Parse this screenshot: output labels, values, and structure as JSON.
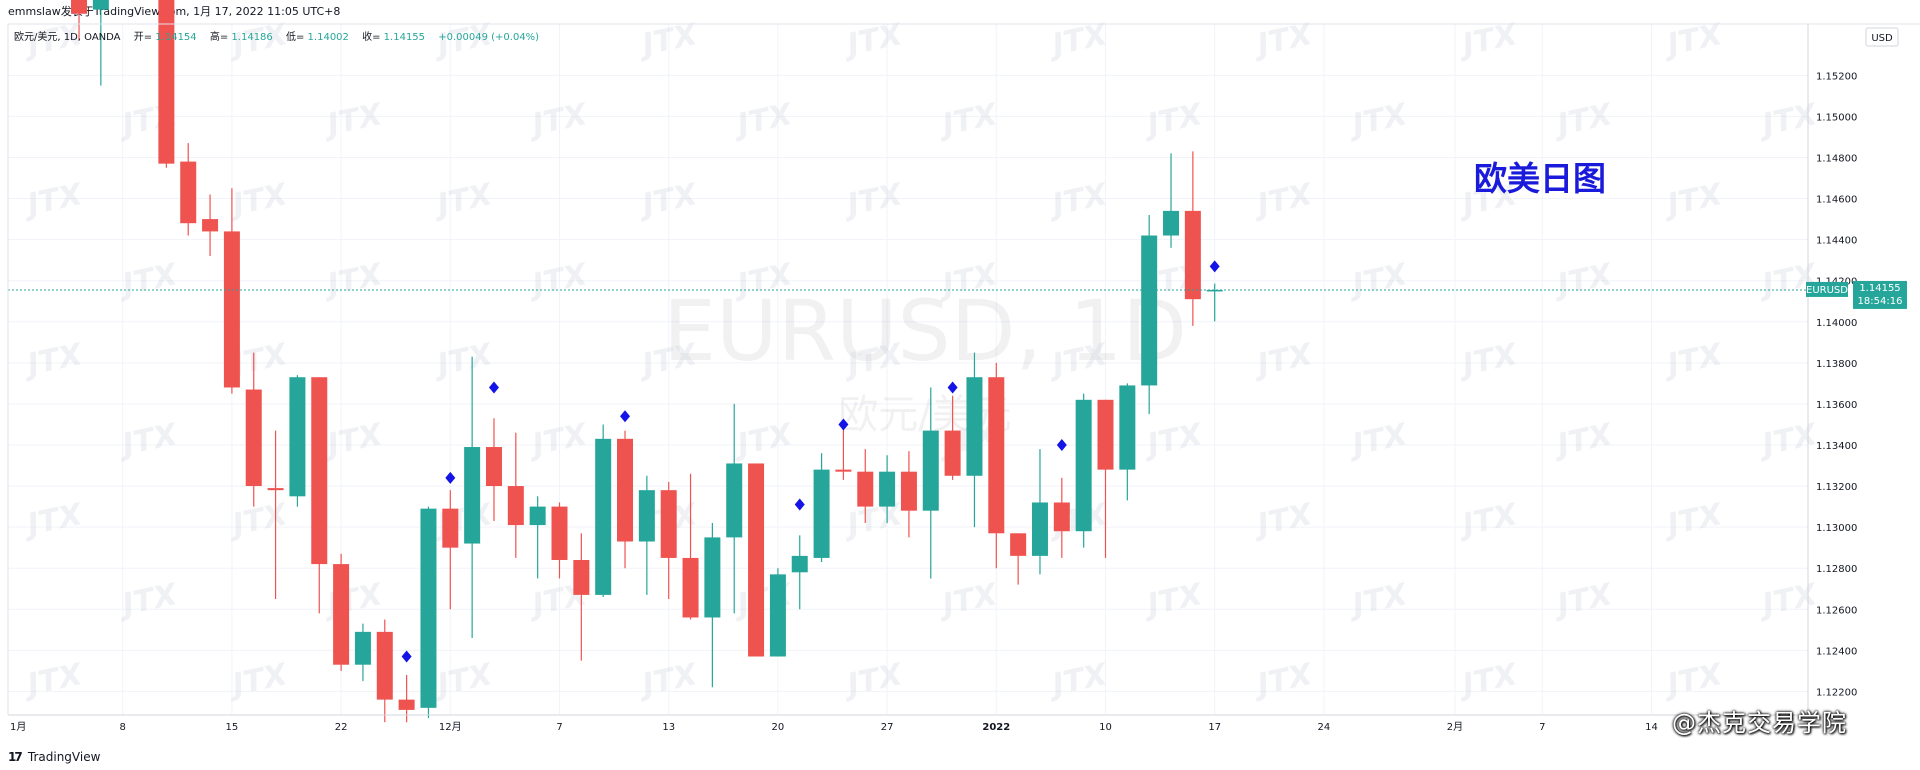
{
  "header": {
    "publish_line": "emmslaw发表于TradingView.com,  1月 17, 2022 11:05 UTC+8"
  },
  "legend": {
    "symbol_line": "欧元/美元, 1D, OANDA",
    "open_label": "开=",
    "open_value": "1.14154",
    "high_label": "高=",
    "high_value": "1.14186",
    "low_label": "低=",
    "low_value": "1.14002",
    "close_label": "收=",
    "close_value": "1.14155",
    "change_value": "+0.00049 (+0.04%)"
  },
  "watermark": {
    "symbol": "EURUSD, 1D",
    "description": "欧元/美元",
    "brand": "JTX"
  },
  "annotation": {
    "title": "欧美日图",
    "color": "#1a1adb"
  },
  "price_axis": {
    "currency": "USD",
    "badge_symbol": "EURUSD",
    "badge_price": "1.14155",
    "badge_countdown": "18:54:16"
  },
  "footer": {
    "brand": "TradingView",
    "social": "@杰克交易学院"
  },
  "colors": {
    "up": "#26a69a",
    "down": "#ef5350",
    "marker": "#1414e6",
    "grid": "#f0f3fa",
    "axis_text": "#131722"
  },
  "chart_data": {
    "type": "candlestick",
    "ylim": [
      1.1209,
      1.1545
    ],
    "y_ticks": [
      "1.12200",
      "1.12400",
      "1.12600",
      "1.12800",
      "1.13000",
      "1.13200",
      "1.13400",
      "1.13600",
      "1.13800",
      "1.14000",
      "1.14200",
      "1.14400",
      "1.14600",
      "1.14800",
      "1.15000",
      "1.15200"
    ],
    "x_tick_labels": [
      {
        "slot": 5,
        "label": "8"
      },
      {
        "slot": 10,
        "label": "15"
      },
      {
        "slot": 15,
        "label": "22"
      },
      {
        "slot": 20,
        "label": "12月"
      },
      {
        "slot": 25,
        "label": "7"
      },
      {
        "slot": 30,
        "label": "13"
      },
      {
        "slot": 35,
        "label": "20"
      },
      {
        "slot": 40,
        "label": "27"
      },
      {
        "slot": 45,
        "label": "2022"
      },
      {
        "slot": 50,
        "label": "10"
      },
      {
        "slot": 55,
        "label": "17"
      },
      {
        "slot": 60,
        "label": "24"
      },
      {
        "slot": 66,
        "label": "2月"
      },
      {
        "slot": 70,
        "label": "7"
      },
      {
        "slot": 75,
        "label": "14"
      }
    ],
    "x_tick_first": "1月",
    "last_price": 1.14155,
    "candles": [
      {
        "slot": 3,
        "o": 1.1562,
        "h": 1.158,
        "l": 1.1537,
        "c": 1.155
      },
      {
        "slot": 4,
        "o": 1.1552,
        "h": 1.1575,
        "l": 1.1515,
        "c": 1.1565
      },
      {
        "slot": 7,
        "o": 1.1565,
        "h": 1.1575,
        "l": 1.1475,
        "c": 1.1477
      },
      {
        "slot": 8,
        "o": 1.1478,
        "h": 1.1487,
        "l": 1.1442,
        "c": 1.1448
      },
      {
        "slot": 9,
        "o": 1.145,
        "h": 1.1462,
        "l": 1.1432,
        "c": 1.1444
      },
      {
        "slot": 10,
        "o": 1.1444,
        "h": 1.1465,
        "l": 1.1365,
        "c": 1.1368
      },
      {
        "slot": 11,
        "o": 1.1367,
        "h": 1.1385,
        "l": 1.131,
        "c": 1.132
      },
      {
        "slot": 12,
        "o": 1.1319,
        "h": 1.1347,
        "l": 1.1265,
        "c": 1.1318
      },
      {
        "slot": 13,
        "o": 1.1315,
        "h": 1.1374,
        "l": 1.131,
        "c": 1.1373
      },
      {
        "slot": 14,
        "o": 1.1373,
        "h": 1.1373,
        "l": 1.1258,
        "c": 1.1282
      },
      {
        "slot": 15,
        "o": 1.1282,
        "h": 1.1287,
        "l": 1.123,
        "c": 1.1233
      },
      {
        "slot": 16,
        "o": 1.1233,
        "h": 1.1253,
        "l": 1.1225,
        "c": 1.1249
      },
      {
        "slot": 17,
        "o": 1.1249,
        "h": 1.1255,
        "l": 1.1205,
        "c": 1.1216
      },
      {
        "slot": 18,
        "o": 1.1216,
        "h": 1.1228,
        "l": 1.1205,
        "c": 1.1211
      },
      {
        "slot": 19,
        "o": 1.1212,
        "h": 1.131,
        "l": 1.1207,
        "c": 1.1309
      },
      {
        "slot": 20,
        "o": 1.1309,
        "h": 1.1318,
        "l": 1.126,
        "c": 1.129
      },
      {
        "slot": 21,
        "o": 1.1292,
        "h": 1.1383,
        "l": 1.1246,
        "c": 1.1339
      },
      {
        "slot": 22,
        "o": 1.1339,
        "h": 1.1353,
        "l": 1.1303,
        "c": 1.132
      },
      {
        "slot": 23,
        "o": 1.132,
        "h": 1.1346,
        "l": 1.1285,
        "c": 1.1301
      },
      {
        "slot": 24,
        "o": 1.1301,
        "h": 1.1315,
        "l": 1.1275,
        "c": 1.131
      },
      {
        "slot": 25,
        "o": 1.131,
        "h": 1.1312,
        "l": 1.1275,
        "c": 1.1284
      },
      {
        "slot": 26,
        "o": 1.1284,
        "h": 1.1297,
        "l": 1.1235,
        "c": 1.1267
      },
      {
        "slot": 27,
        "o": 1.1267,
        "h": 1.135,
        "l": 1.1266,
        "c": 1.1343
      },
      {
        "slot": 28,
        "o": 1.1343,
        "h": 1.1347,
        "l": 1.128,
        "c": 1.1293
      },
      {
        "slot": 29,
        "o": 1.1293,
        "h": 1.1325,
        "l": 1.1267,
        "c": 1.1318
      },
      {
        "slot": 30,
        "o": 1.1318,
        "h": 1.1322,
        "l": 1.1265,
        "c": 1.1285
      },
      {
        "slot": 31,
        "o": 1.1285,
        "h": 1.1326,
        "l": 1.1255,
        "c": 1.1256
      },
      {
        "slot": 32,
        "o": 1.1256,
        "h": 1.1302,
        "l": 1.1222,
        "c": 1.1295
      },
      {
        "slot": 33,
        "o": 1.1295,
        "h": 1.136,
        "l": 1.1258,
        "c": 1.1331
      },
      {
        "slot": 34,
        "o": 1.1331,
        "h": 1.1331,
        "l": 1.1237,
        "c": 1.1237
      },
      {
        "slot": 35,
        "o": 1.1237,
        "h": 1.128,
        "l": 1.1237,
        "c": 1.1277
      },
      {
        "slot": 36,
        "o": 1.1278,
        "h": 1.1296,
        "l": 1.126,
        "c": 1.1286
      },
      {
        "slot": 37,
        "o": 1.1285,
        "h": 1.1336,
        "l": 1.1283,
        "c": 1.1328
      },
      {
        "slot": 38,
        "o": 1.1328,
        "h": 1.135,
        "l": 1.1323,
        "c": 1.1327
      },
      {
        "slot": 39,
        "o": 1.1327,
        "h": 1.1338,
        "l": 1.1302,
        "c": 1.131
      },
      {
        "slot": 40,
        "o": 1.131,
        "h": 1.1335,
        "l": 1.1302,
        "c": 1.1327
      },
      {
        "slot": 41,
        "o": 1.1327,
        "h": 1.1337,
        "l": 1.1295,
        "c": 1.1308
      },
      {
        "slot": 42,
        "o": 1.1308,
        "h": 1.1368,
        "l": 1.1275,
        "c": 1.1347
      },
      {
        "slot": 43,
        "o": 1.1347,
        "h": 1.1364,
        "l": 1.1323,
        "c": 1.1325
      },
      {
        "slot": 44,
        "o": 1.1325,
        "h": 1.1385,
        "l": 1.13,
        "c": 1.1373
      },
      {
        "slot": 45,
        "o": 1.1373,
        "h": 1.138,
        "l": 1.128,
        "c": 1.1297
      },
      {
        "slot": 46,
        "o": 1.1297,
        "h": 1.1297,
        "l": 1.1272,
        "c": 1.1286
      },
      {
        "slot": 47,
        "o": 1.1286,
        "h": 1.1338,
        "l": 1.1277,
        "c": 1.1312
      },
      {
        "slot": 48,
        "o": 1.1312,
        "h": 1.1324,
        "l": 1.1285,
        "c": 1.1298
      },
      {
        "slot": 49,
        "o": 1.1298,
        "h": 1.1365,
        "l": 1.129,
        "c": 1.1362
      },
      {
        "slot": 50,
        "o": 1.1362,
        "h": 1.1362,
        "l": 1.1285,
        "c": 1.1328
      },
      {
        "slot": 51,
        "o": 1.1328,
        "h": 1.137,
        "l": 1.1313,
        "c": 1.1369
      },
      {
        "slot": 52,
        "o": 1.1369,
        "h": 1.1452,
        "l": 1.1355,
        "c": 1.1442
      },
      {
        "slot": 53,
        "o": 1.1442,
        "h": 1.1482,
        "l": 1.1436,
        "c": 1.1454
      },
      {
        "slot": 54,
        "o": 1.1454,
        "h": 1.1483,
        "l": 1.1398,
        "c": 1.1411
      },
      {
        "slot": 55,
        "o": 1.14154,
        "h": 1.14186,
        "l": 1.14002,
        "c": 1.14155
      }
    ],
    "markers": [
      {
        "slot": 18,
        "price": 1.1237
      },
      {
        "slot": 20,
        "price": 1.1324
      },
      {
        "slot": 22,
        "price": 1.1368
      },
      {
        "slot": 28,
        "price": 1.1354
      },
      {
        "slot": 36,
        "price": 1.1311
      },
      {
        "slot": 38,
        "price": 1.135
      },
      {
        "slot": 43,
        "price": 1.1368
      },
      {
        "slot": 48,
        "price": 1.134
      },
      {
        "slot": 55,
        "price": 1.1427
      }
    ]
  }
}
